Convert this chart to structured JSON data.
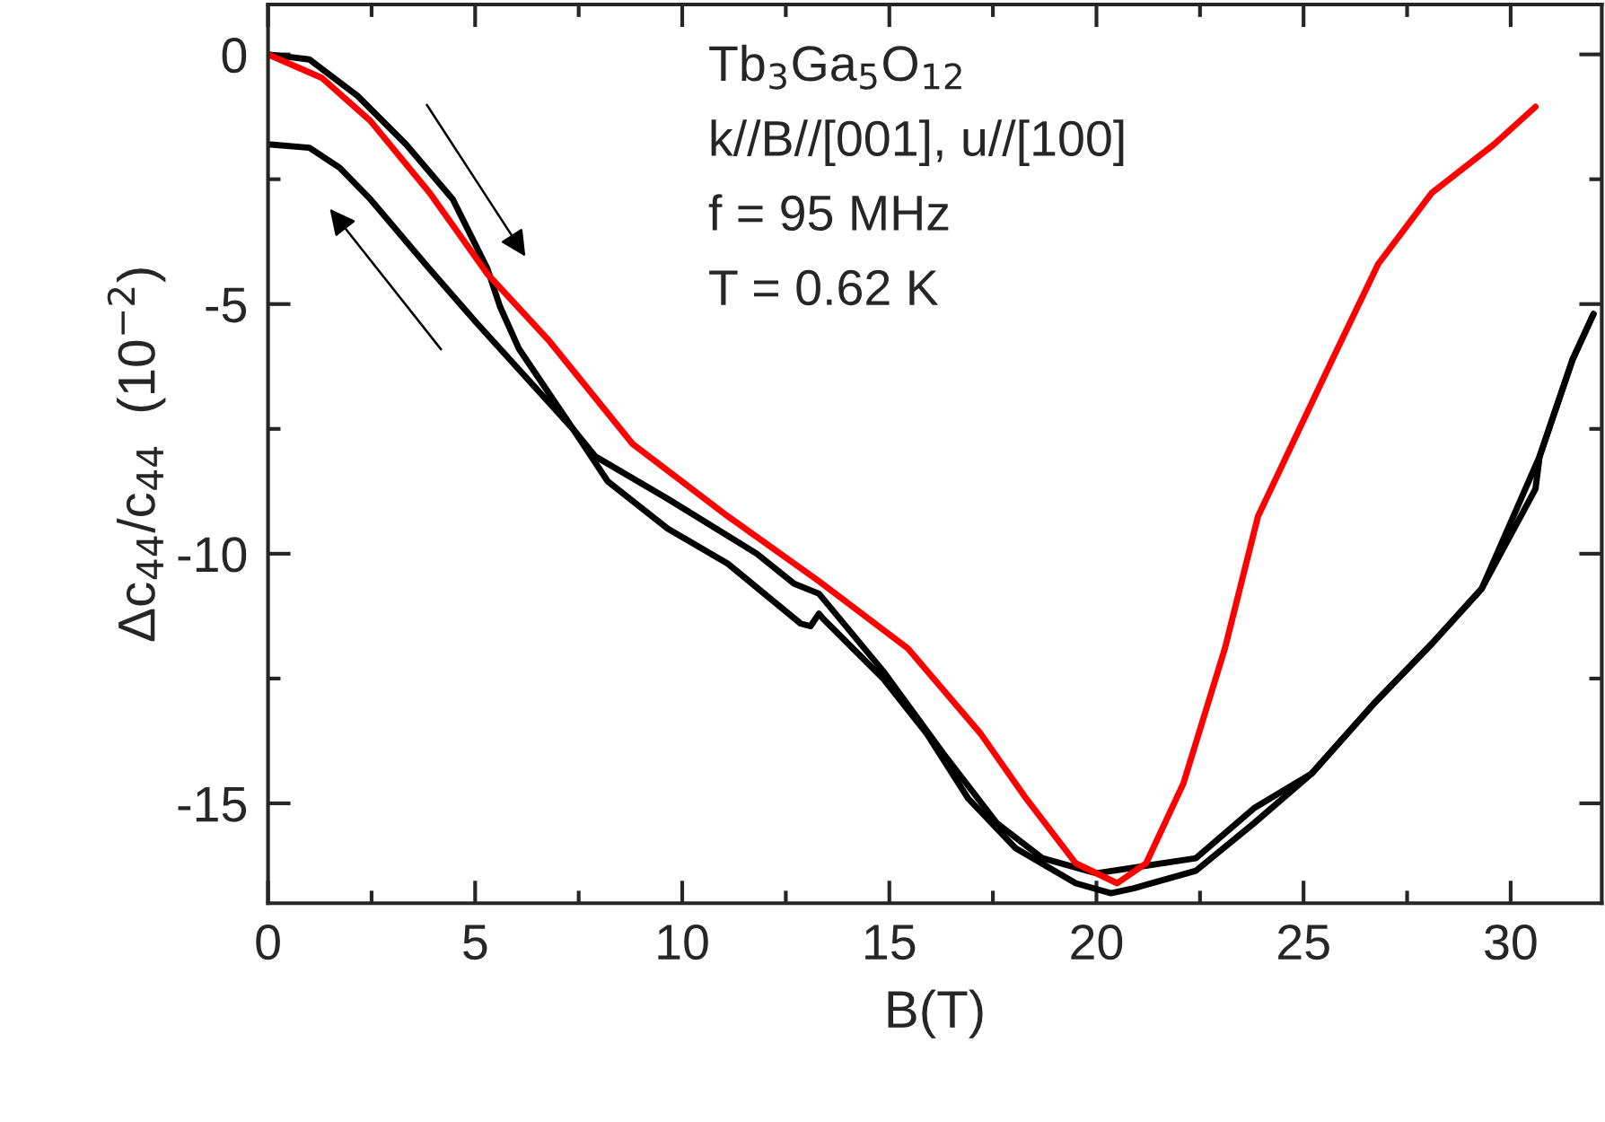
{
  "chart_data": {
    "type": "line",
    "xlabel": "B(T)",
    "ylabel": "Δc$_{44}$/c$_{44}$  (10$^{−2}$)",
    "annotations": [
      "Tb$_{3}$Ga$_{5}$O$_{12}$",
      "k//B//[001], u//[100]",
      "f = 95 MHz",
      "T = 0.62 K"
    ],
    "xlim": [
      0,
      32.2
    ],
    "ylim": [
      -17,
      1
    ],
    "xticks": [
      0,
      {
        "value": 2.5,
        "label": null
      },
      5,
      {
        "value": 7.5,
        "label": null
      },
      10,
      {
        "value": 12.5,
        "label": null
      },
      15,
      {
        "value": 17.5,
        "label": null
      },
      20,
      {
        "value": 22.5,
        "label": null
      },
      25,
      {
        "value": 27.5,
        "label": null
      },
      30
    ],
    "yticks": [
      -15,
      {
        "value": -12.5,
        "label": null
      },
      -10,
      {
        "value": -7.5,
        "label": null
      },
      -5,
      {
        "value": -2.5,
        "label": null
      },
      0
    ],
    "grid": false,
    "legend": false,
    "marker": "none",
    "line_style": "solid",
    "series": [
      {
        "color": "#000000",
        "x": [
          0,
          1.0,
          2.16,
          3.33,
          4.46,
          5.3,
          5.6,
          6.06,
          7.36,
          8.2,
          9.65,
          11.1,
          12.86,
          13.1,
          13.3,
          13.4,
          14.85,
          15.9,
          16.9,
          18.05,
          19.5,
          20.35,
          20.9,
          22.4,
          23.8,
          25.2,
          26.7,
          28.1,
          29.3,
          30.6,
          30.7,
          31.5,
          32.0
        ],
        "values": [
          0,
          -0.1,
          -0.83,
          -1.8,
          -2.9,
          -4.3,
          -5.05,
          -5.9,
          -7.5,
          -8.55,
          -9.5,
          -10.2,
          -11.4,
          -11.45,
          -11.2,
          -11.3,
          -12.5,
          -13.6,
          -14.9,
          -15.9,
          -16.6,
          -16.8,
          -16.7,
          -16.35,
          -15.4,
          -14.4,
          -13.0,
          -11.8,
          -10.7,
          -8.7,
          -8.05,
          -6.1,
          -5.2
        ]
      },
      {
        "color": "#000000",
        "x": [
          32.0,
          31.5,
          30.7,
          29.3,
          28.1,
          26.7,
          25.2,
          23.8,
          22.4,
          20.0,
          18.7,
          17.6,
          16.3,
          14.85,
          13.3,
          12.7,
          11.8,
          9.65,
          7.9,
          7.36,
          5.06,
          3.9,
          2.47,
          1.73,
          1.0,
          0
        ],
        "values": [
          -5.2,
          -6.1,
          -8.05,
          -10.7,
          -11.8,
          -13.0,
          -14.4,
          -15.1,
          -16.1,
          -16.4,
          -16.1,
          -15.4,
          -14.0,
          -12.35,
          -10.8,
          -10.6,
          -10.0,
          -8.9,
          -8.05,
          -7.5,
          -5.4,
          -4.3,
          -2.9,
          -2.27,
          -1.87,
          -1.8
        ]
      },
      {
        "color": "#ff0000",
        "x": [
          0,
          1.3,
          2.47,
          3.9,
          5.3,
          6.8,
          8.8,
          11.1,
          13.3,
          15.45,
          17.2,
          18.3,
          19.5,
          20.5,
          21.2,
          22.1,
          23.1,
          23.9,
          25.7,
          26.8,
          28.1,
          29.6,
          30.6
        ],
        "values": [
          0,
          -0.47,
          -1.33,
          -2.77,
          -4.4,
          -5.75,
          -7.8,
          -9.25,
          -10.55,
          -11.9,
          -13.6,
          -14.9,
          -16.2,
          -16.6,
          -16.2,
          -14.6,
          -11.9,
          -9.25,
          -6.1,
          -4.2,
          -2.77,
          -1.8,
          -1.05
        ]
      }
    ]
  }
}
